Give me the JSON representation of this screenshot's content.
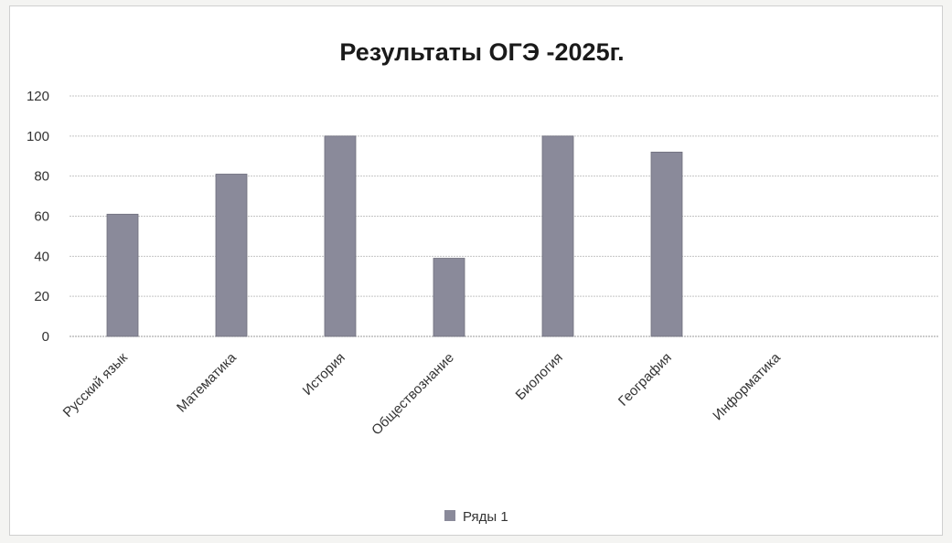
{
  "chart_data": {
    "type": "bar",
    "title": "Результаты ОГЭ -2025г.",
    "xlabel": "",
    "ylabel": "",
    "categories": [
      "Русский язык",
      "Математика",
      "История",
      "Обществознание",
      "Биология",
      "География",
      "Информатика"
    ],
    "series": [
      {
        "name": "Ряды 1",
        "values": [
          61,
          81,
          100,
          39,
          100,
          92,
          0
        ],
        "color": "#8a8a9a"
      }
    ],
    "ylim": [
      0,
      120
    ],
    "yticks": [
      0,
      20,
      40,
      60,
      80,
      100,
      120
    ],
    "grid": true,
    "legend": "bottom-center"
  }
}
